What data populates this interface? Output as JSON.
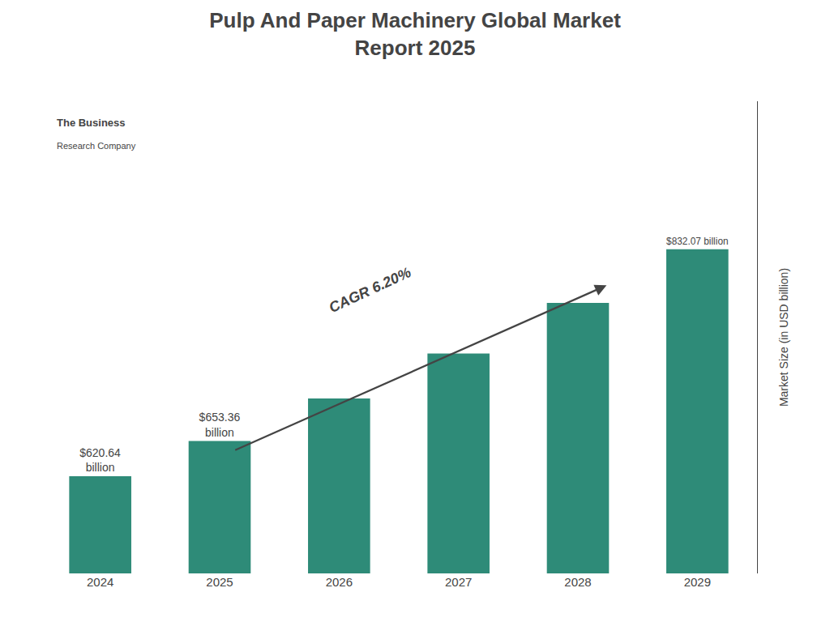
{
  "chart_data": {
    "type": "bar",
    "title": "Pulp And Paper Machinery Global Market\nReport 2025",
    "categories": [
      "2024",
      "2025",
      "2026",
      "2027",
      "2028",
      "2029"
    ],
    "values": [
      620.64,
      653.36,
      693.0,
      735.0,
      782.0,
      832.07
    ],
    "color": "#2e8b78",
    "ylabel": "Market Size (in USD billion)",
    "ylim": [
      530,
      970
    ],
    "grid": false,
    "tick_labels": "x",
    "data_labels": true,
    "value_labels": [
      "$620.64\nbillion",
      "$653.36\nbillion",
      null,
      null,
      null,
      "$832.07 billion"
    ],
    "annotations": [
      "CAGR 6.20%",
      "The Business",
      "Research Company"
    ]
  }
}
